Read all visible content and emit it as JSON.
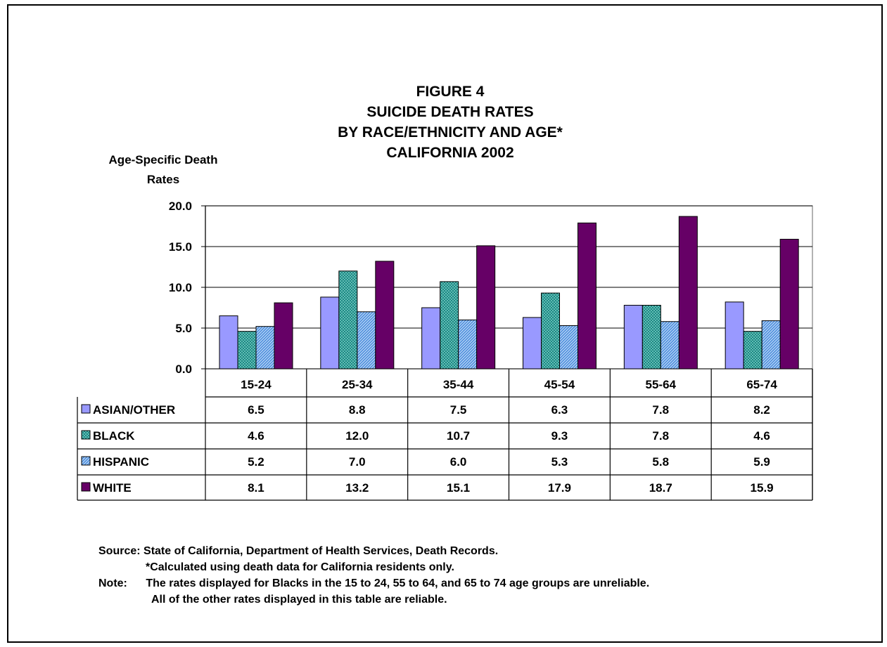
{
  "chart_data": {
    "type": "bar",
    "title_lines": [
      "FIGURE 4",
      "SUICIDE DEATH RATES",
      "BY RACE/ETHNICITY AND AGE*",
      "CALIFORNIA 2002"
    ],
    "ylabel_lines": [
      "Age-Specific Death",
      "Rates"
    ],
    "xlabel": "",
    "ylim": [
      0,
      20
    ],
    "yticks": [
      "0.0",
      "5.0",
      "10.0",
      "15.0",
      "20.0"
    ],
    "grid": true,
    "legend": "data-table-below",
    "categories": [
      "15-24",
      "25-34",
      "35-44",
      "45-54",
      "55-64",
      "65-74"
    ],
    "series": [
      {
        "name": "ASIAN/OTHER",
        "color": "#9999ff",
        "pattern": "solid",
        "values": [
          6.5,
          8.8,
          7.5,
          6.3,
          7.8,
          8.2
        ],
        "labels": [
          "6.5",
          "8.8",
          "7.5",
          "6.3",
          "7.8",
          "8.2"
        ]
      },
      {
        "name": "BLACK",
        "color": "#0e7f7a",
        "pattern": "crosshatch",
        "values": [
          4.6,
          12.0,
          10.7,
          9.3,
          7.8,
          4.6
        ],
        "labels": [
          "4.6",
          "12.0",
          "10.7",
          "9.3",
          "7.8",
          "4.6"
        ]
      },
      {
        "name": "HISPANIC",
        "color": "#6aa8e8",
        "pattern": "diagonal",
        "values": [
          5.2,
          7.0,
          6.0,
          5.3,
          5.8,
          5.9
        ],
        "labels": [
          "5.2",
          "7.0",
          "6.0",
          "5.3",
          "5.8",
          "5.9"
        ]
      },
      {
        "name": "WHITE",
        "color": "#660066",
        "pattern": "solid",
        "values": [
          8.1,
          13.2,
          15.1,
          17.9,
          18.7,
          15.9
        ],
        "labels": [
          "8.1",
          "13.2",
          "15.1",
          "17.9",
          "18.7",
          "15.9"
        ]
      }
    ]
  },
  "footnotes": {
    "source_label": "Source:",
    "source_text": "State of California, Department of Health Services, Death Records.",
    "calc_note": "*Calculated using death data for California residents only.",
    "note_label": "Note:",
    "note_text": "The rates displayed for Blacks in the 15 to 24, 55 to 64, and 65 to 74 age groups are unreliable.",
    "note_text_2": "All of  the other rates displayed in this table are reliable."
  }
}
